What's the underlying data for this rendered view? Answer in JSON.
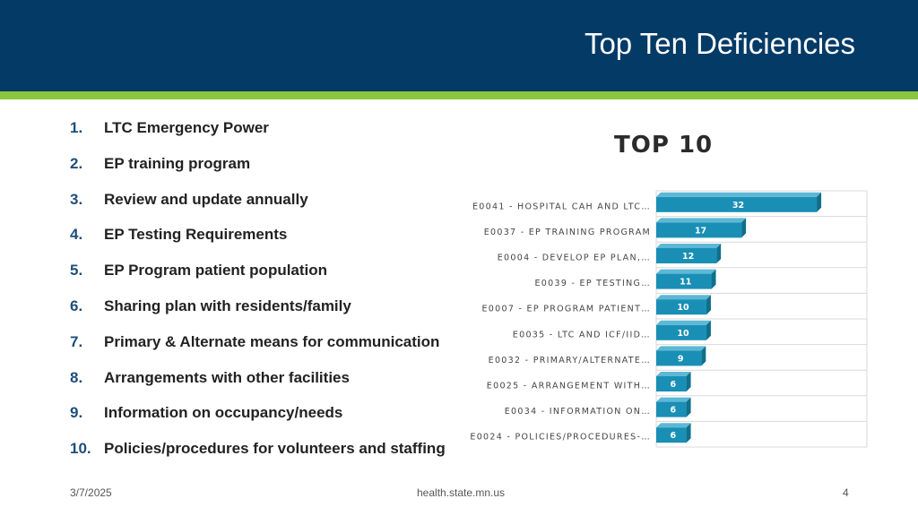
{
  "header": {
    "title": "Top Ten Deficiencies"
  },
  "list": [
    {
      "num": "1.",
      "text": "LTC Emergency Power"
    },
    {
      "num": "2.",
      "text": "EP training program"
    },
    {
      "num": "3.",
      "text": "Review and update annually"
    },
    {
      "num": "4.",
      "text": "EP Testing Requirements"
    },
    {
      "num": "5.",
      "text": "EP Program patient population"
    },
    {
      "num": "6.",
      "text": "Sharing plan with residents/family"
    },
    {
      "num": "7.",
      "text": "Primary & Alternate means for communication"
    },
    {
      "num": "8.",
      "text": "Arrangements with other facilities"
    },
    {
      "num": "9.",
      "text": "Information on occupancy/needs"
    },
    {
      "num": "10.",
      "text": "Policies/procedures for volunteers and staffing"
    }
  ],
  "chart_data": {
    "type": "bar",
    "orientation": "horizontal",
    "title": "TOP 10",
    "categories": [
      "E0041 - HOSPITAL CAH AND LTC…",
      "E0037  - EP TRAINING PROGRAM",
      "E0004 - DEVELOP EP PLAN,…",
      "E0039 - EP TESTING…",
      "E0007 - EP PROGRAM PATIENT…",
      "E0035 - LTC AND ICF/IID…",
      "E0032 - PRIMARY/ALTERNATE…",
      "E0025 - ARRANGEMENT WITH…",
      "E0034 - INFORMATION ON…",
      "E0024 - POLICIES/PROCEDURES-…"
    ],
    "values": [
      32,
      17,
      12,
      11,
      10,
      10,
      9,
      6,
      6,
      6
    ],
    "xlim": [
      0,
      42
    ],
    "grid": true,
    "bar_color": "#1a8fb5",
    "bar_side_color": "#0f6f8c"
  },
  "footer": {
    "date": "3/7/2025",
    "site": "health.state.mn.us",
    "page": "4"
  },
  "colors": {
    "header_bg": "#033a66",
    "stripe": "#8cc63f"
  }
}
